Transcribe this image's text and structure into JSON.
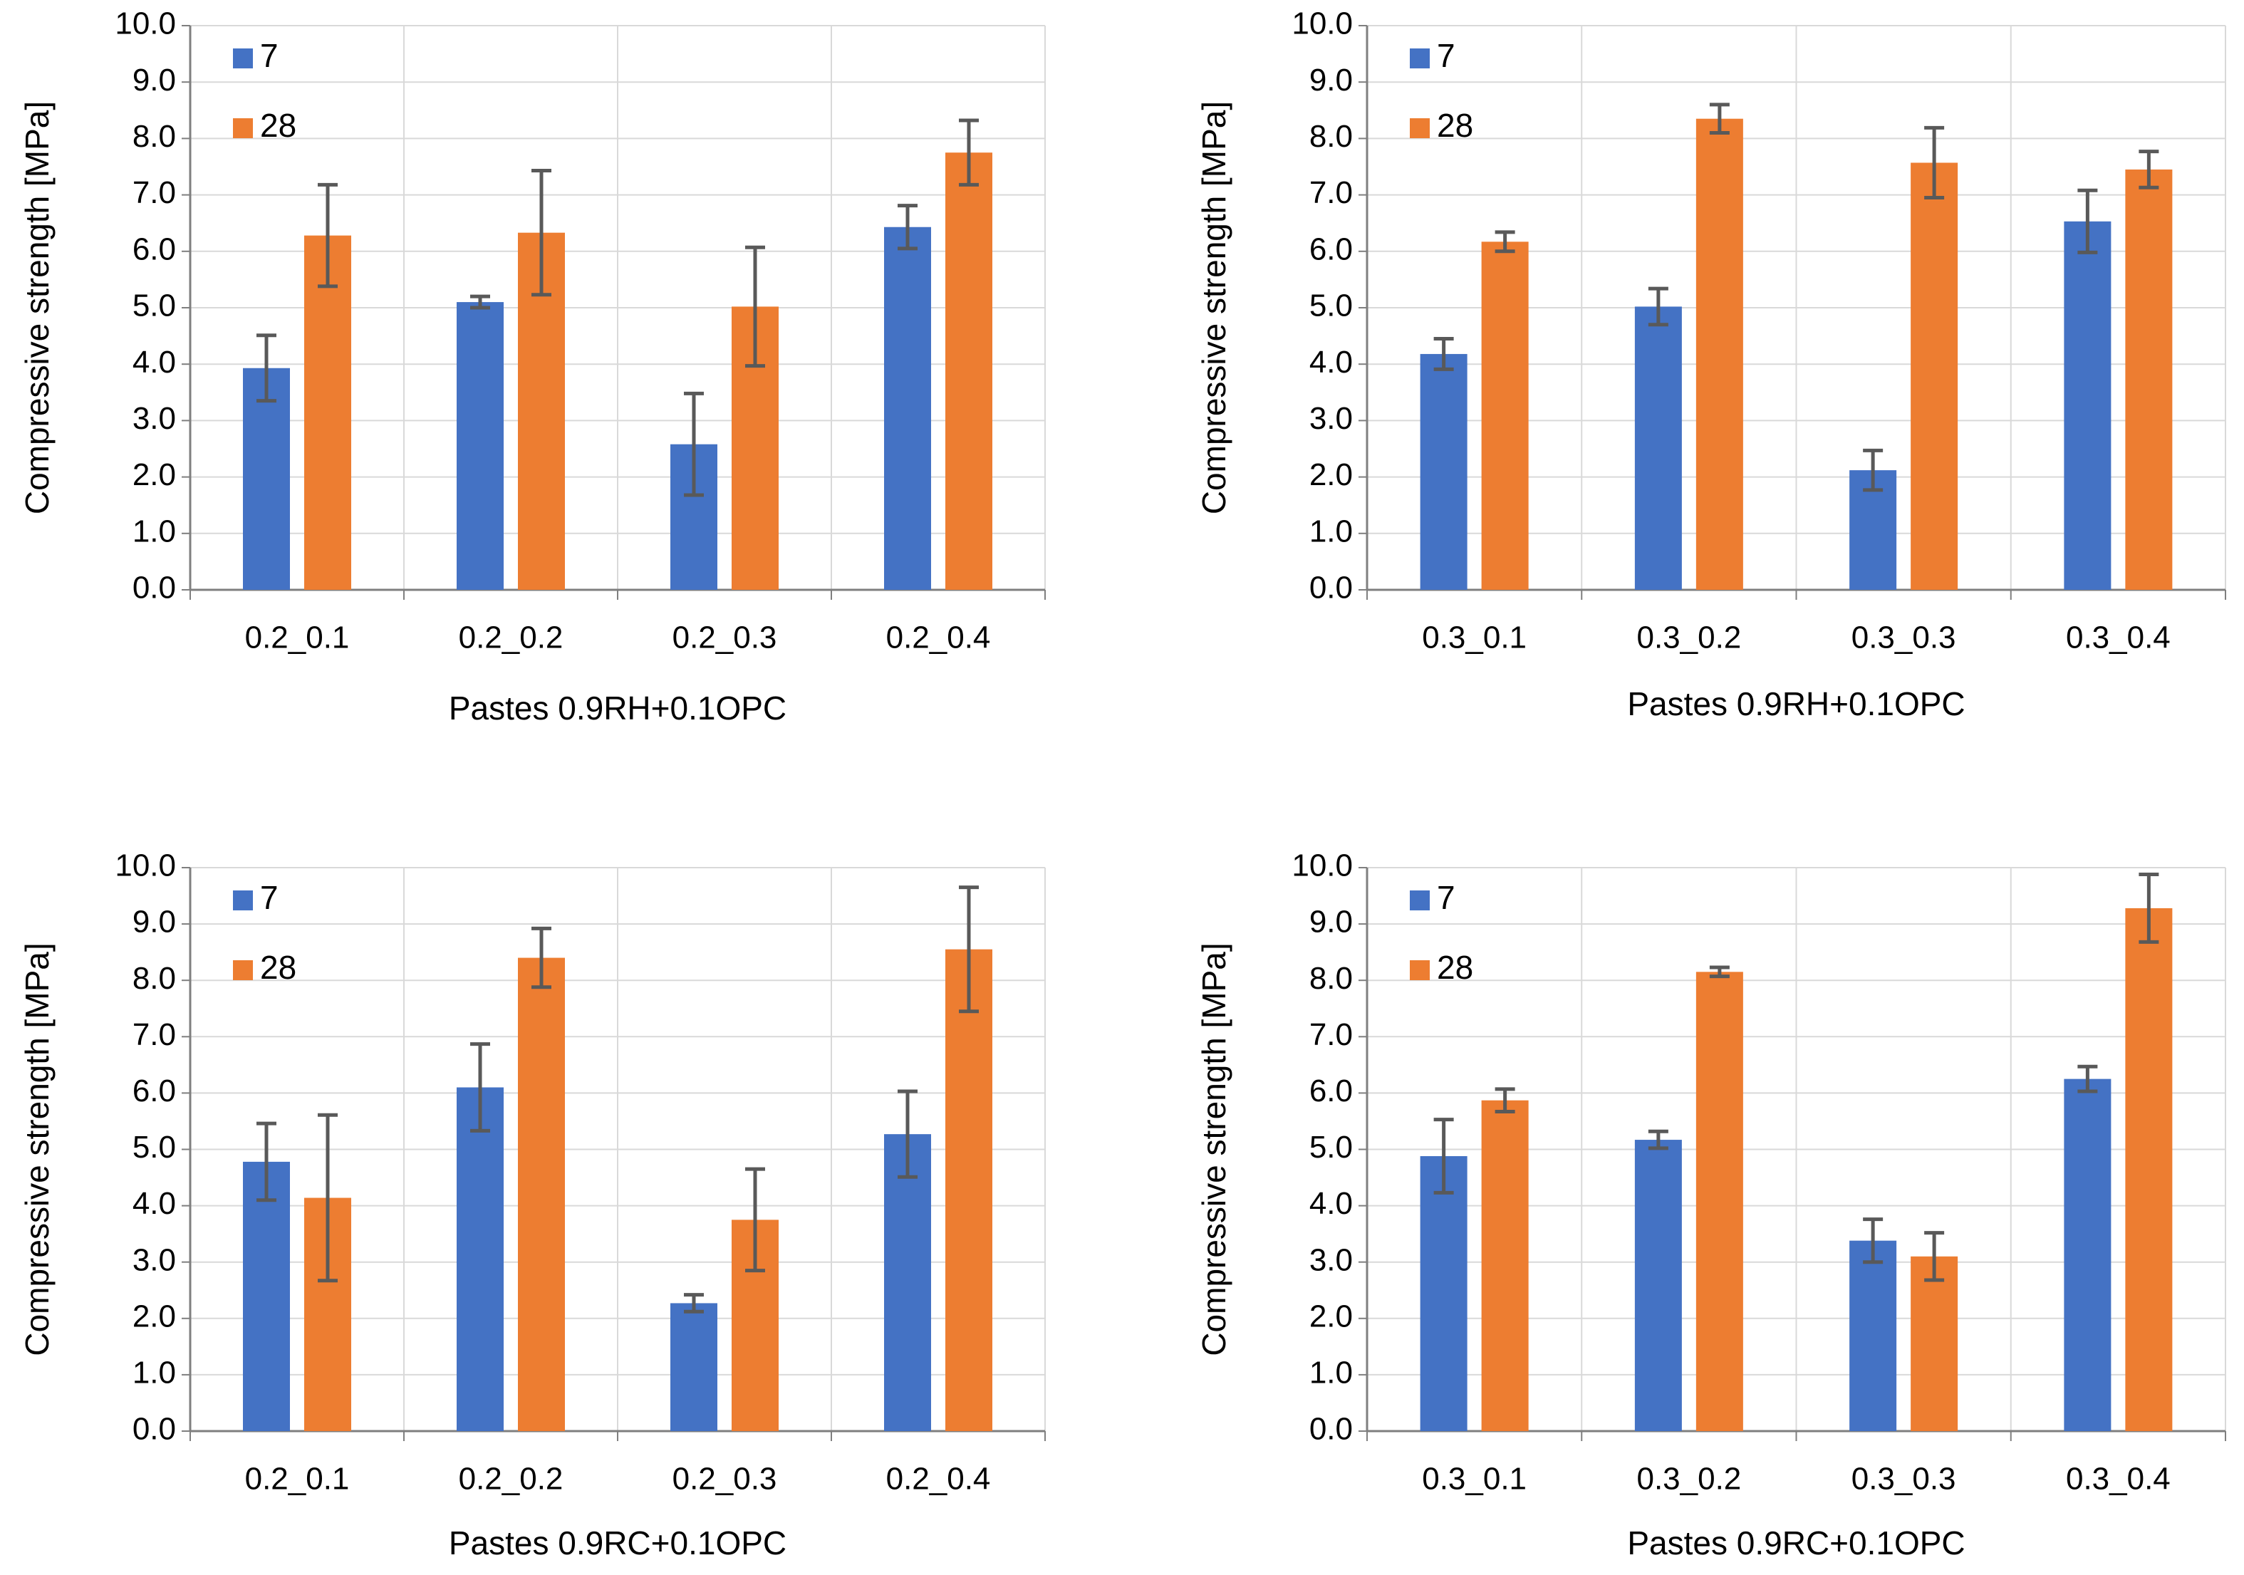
{
  "chart_data": [
    {
      "type": "bar",
      "xlabel": "Pastes 0.9RH+0.1OPC",
      "ylabel": "Compressive strength [MPa]",
      "categories": [
        "0.2_0.1",
        "0.2_0.2",
        "0.2_0.3",
        "0.2_0.4"
      ],
      "series": [
        {
          "name": "7",
          "color": "#4472c4",
          "values": [
            3.93,
            5.1,
            2.58,
            6.43
          ],
          "errors": [
            0.58,
            0.1,
            0.9,
            0.38
          ]
        },
        {
          "name": "28",
          "color": "#ed7d31",
          "values": [
            6.28,
            6.33,
            5.02,
            7.75
          ],
          "errors": [
            0.9,
            1.1,
            1.05,
            0.57
          ]
        }
      ],
      "ylim": [
        0,
        10
      ],
      "yticks": [
        {
          "value": 0,
          "label": "0.0"
        },
        {
          "value": 1,
          "label": "1.0"
        },
        {
          "value": 2,
          "label": "2.0"
        },
        {
          "value": 3,
          "label": "3.0"
        },
        {
          "value": 4,
          "label": "4.0"
        },
        {
          "value": 5,
          "label": "5.0"
        },
        {
          "value": 6,
          "label": "6.0"
        },
        {
          "value": 7,
          "label": "7.0"
        },
        {
          "value": 8,
          "label": "8.0"
        },
        {
          "value": 9,
          "label": "9.0"
        },
        {
          "value": 10,
          "label": "10.0"
        }
      ],
      "grid": true,
      "legend": "upper-left",
      "error_color": "#595959"
    },
    {
      "type": "bar",
      "xlabel": "Pastes 0.9RH+0.1OPC",
      "ylabel": "Compressive strength [MPa]",
      "categories": [
        "0.3_0.1",
        "0.3_0.2",
        "0.3_0.3",
        "0.3_0.4"
      ],
      "series": [
        {
          "name": "7",
          "color": "#4472c4",
          "values": [
            4.18,
            5.02,
            2.12,
            6.53
          ],
          "errors": [
            0.27,
            0.32,
            0.35,
            0.55
          ]
        },
        {
          "name": "28",
          "color": "#ed7d31",
          "values": [
            6.17,
            8.35,
            7.57,
            7.45
          ],
          "errors": [
            0.17,
            0.25,
            0.62,
            0.32
          ]
        }
      ],
      "ylim": [
        0,
        10
      ],
      "yticks": [
        {
          "value": 0,
          "label": "0.0"
        },
        {
          "value": 1,
          "label": "1.0"
        },
        {
          "value": 2,
          "label": "2.0"
        },
        {
          "value": 3,
          "label": "3.0"
        },
        {
          "value": 4,
          "label": "4.0"
        },
        {
          "value": 5,
          "label": "5.0"
        },
        {
          "value": 6,
          "label": "6.0"
        },
        {
          "value": 7,
          "label": "7.0"
        },
        {
          "value": 8,
          "label": "8.0"
        },
        {
          "value": 9,
          "label": "9.0"
        },
        {
          "value": 10,
          "label": "10.0"
        }
      ],
      "grid": true,
      "legend": "upper-left",
      "error_color": "#595959"
    },
    {
      "type": "bar",
      "xlabel": "Pastes 0.9RC+0.1OPC",
      "ylabel": "Compressive strength [MPa]",
      "categories": [
        "0.2_0.1",
        "0.2_0.2",
        "0.2_0.3",
        "0.2_0.4"
      ],
      "series": [
        {
          "name": "7",
          "color": "#4472c4",
          "values": [
            4.78,
            6.1,
            2.27,
            5.27
          ],
          "errors": [
            0.68,
            0.77,
            0.15,
            0.76
          ]
        },
        {
          "name": "28",
          "color": "#ed7d31",
          "values": [
            4.14,
            8.4,
            3.75,
            8.55
          ],
          "errors": [
            1.47,
            0.52,
            0.9,
            1.1
          ]
        }
      ],
      "ylim": [
        0,
        10
      ],
      "yticks": [
        {
          "value": 0,
          "label": "0.0"
        },
        {
          "value": 1,
          "label": "1.0"
        },
        {
          "value": 2,
          "label": "2.0"
        },
        {
          "value": 3,
          "label": "3.0"
        },
        {
          "value": 4,
          "label": "4.0"
        },
        {
          "value": 5,
          "label": "5.0"
        },
        {
          "value": 6,
          "label": "6.0"
        },
        {
          "value": 7,
          "label": "7.0"
        },
        {
          "value": 8,
          "label": "8.0"
        },
        {
          "value": 9,
          "label": "9.0"
        },
        {
          "value": 10,
          "label": "10.0"
        }
      ],
      "grid": true,
      "legend": "upper-left",
      "error_color": "#595959"
    },
    {
      "type": "bar",
      "xlabel": "Pastes 0.9RC+0.1OPC",
      "ylabel": "Compressive strength [MPa]",
      "categories": [
        "0.3_0.1",
        "0.3_0.2",
        "0.3_0.3",
        "0.3_0.4"
      ],
      "series": [
        {
          "name": "7",
          "color": "#4472c4",
          "values": [
            4.88,
            5.17,
            3.38,
            6.25
          ],
          "errors": [
            0.65,
            0.15,
            0.38,
            0.22
          ]
        },
        {
          "name": "28",
          "color": "#ed7d31",
          "values": [
            5.87,
            8.15,
            3.1,
            9.28
          ],
          "errors": [
            0.2,
            0.08,
            0.42,
            0.6
          ]
        }
      ],
      "ylim": [
        0,
        10
      ],
      "yticks": [
        {
          "value": 0,
          "label": "0.0"
        },
        {
          "value": 1,
          "label": "1.0"
        },
        {
          "value": 2,
          "label": "2.0"
        },
        {
          "value": 3,
          "label": "3.0"
        },
        {
          "value": 4,
          "label": "4.0"
        },
        {
          "value": 5,
          "label": "5.0"
        },
        {
          "value": 6,
          "label": "6.0"
        },
        {
          "value": 7,
          "label": "7.0"
        },
        {
          "value": 8,
          "label": "8.0"
        },
        {
          "value": 9,
          "label": "9.0"
        },
        {
          "value": 10,
          "label": "10.0"
        }
      ],
      "grid": true,
      "legend": "upper-left",
      "error_color": "#595959"
    }
  ]
}
